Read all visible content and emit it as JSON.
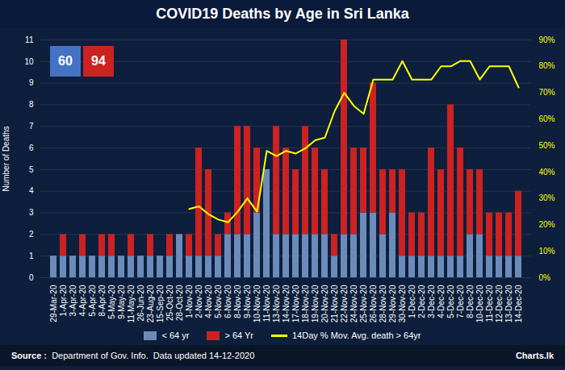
{
  "chart_data": {
    "type": "bar",
    "title": "COVID19 Deaths by Age in Sri Lanka",
    "ylabel": "Number of Deaths",
    "categories": [
      "29-Mar-20",
      "1-Apr-20",
      "3-Apr-20",
      "4-Apr-20",
      "5-Apr-20",
      "8-Apr-20",
      "5-May-20",
      "9-May-20",
      "11-May-20",
      "26-Jun-20",
      "23-Aug-20",
      "15-Sep-20",
      "25-Oct-20",
      "28-Oct-20",
      "1-Nov-20",
      "2-Nov-20",
      "4-Nov-20",
      "5-Nov-20",
      "6-Nov-20",
      "8-Nov-20",
      "9-Nov-20",
      "10-Nov-20",
      "11-Nov-20",
      "13-Nov-20",
      "14-Nov-20",
      "17-Nov-20",
      "18-Nov-20",
      "19-Nov-20",
      "20-Nov-20",
      "21-Nov-20",
      "22-Nov-20",
      "24-Nov-20",
      "25-Nov-20",
      "26-Nov-20",
      "28-Nov-20",
      "29-Nov-20",
      "30-Nov-20",
      "1-Dec-20",
      "2-Dec-20",
      "3-Dec-20",
      "4-Dec-20",
      "5-Dec-20",
      "7-Dec-20",
      "8-Dec-20",
      "10-Dec-20",
      "11-Dec-20",
      "12-Dec-20",
      "13-Dec-20",
      "14-Dec-20"
    ],
    "series": [
      {
        "name": "< 64 yr",
        "color": "#6b8cba",
        "values": [
          1,
          1,
          1,
          1,
          1,
          1,
          1,
          1,
          1,
          1,
          1,
          1,
          1,
          2,
          1,
          1,
          1,
          1,
          2,
          2,
          2,
          3,
          5,
          2,
          2,
          2,
          2,
          2,
          2,
          1,
          2,
          2,
          3,
          3,
          2,
          3,
          1,
          1,
          1,
          1,
          1,
          1,
          1,
          2,
          2,
          1,
          1,
          1,
          1
        ]
      },
      {
        "name": "> 64 Yr",
        "color": "#cc2222",
        "values": [
          0,
          1,
          0,
          1,
          0,
          1,
          1,
          0,
          1,
          0,
          1,
          0,
          1,
          0,
          1,
          5,
          4,
          1,
          1,
          5,
          5,
          3,
          0,
          5,
          4,
          3,
          5,
          4,
          3,
          1,
          9,
          4,
          3,
          6,
          3,
          2,
          4,
          2,
          2,
          5,
          4,
          7,
          5,
          3,
          3,
          2,
          2,
          2,
          3
        ]
      },
      {
        "name": "14Day % Mov. Avg. death > 64yr",
        "color": "#ffff00",
        "type": "line",
        "axis": "y2",
        "values": [
          null,
          null,
          null,
          null,
          null,
          null,
          null,
          null,
          null,
          null,
          null,
          null,
          null,
          null,
          26,
          27,
          24,
          22,
          21,
          25,
          30,
          25,
          48,
          46,
          48,
          47,
          49,
          52,
          53,
          63,
          70,
          65,
          62,
          75,
          75,
          75,
          82,
          75,
          75,
          75,
          80,
          80,
          82,
          82,
          75,
          80,
          80,
          80,
          72
        ]
      }
    ],
    "stacked": true,
    "ylim": [
      0,
      11
    ],
    "yticks": [
      0,
      1,
      2,
      3,
      4,
      5,
      6,
      7,
      8,
      9,
      10,
      11
    ],
    "y2lim": [
      0,
      90
    ],
    "y2ticks": [
      {
        "value": 0,
        "label": "0%"
      },
      {
        "value": 10,
        "label": "10%"
      },
      {
        "value": 20,
        "label": "20%"
      },
      {
        "value": 30,
        "label": "30%"
      },
      {
        "value": 40,
        "label": "40%"
      },
      {
        "value": 50,
        "label": "50%"
      },
      {
        "value": 60,
        "label": "60%"
      },
      {
        "value": 70,
        "label": "70%"
      },
      {
        "value": 80,
        "label": "80%"
      },
      {
        "value": 90,
        "label": "90%"
      }
    ],
    "grid": true,
    "legend": "bottom",
    "annotations": [
      {
        "text": "60",
        "color": "#4472c4"
      },
      {
        "text": "94",
        "color": "#cc2222"
      }
    ],
    "source_label": "Source :",
    "source": "  Department of Gov. Info.  Data updated 14-12-2020",
    "logo": "Charts.lk"
  }
}
